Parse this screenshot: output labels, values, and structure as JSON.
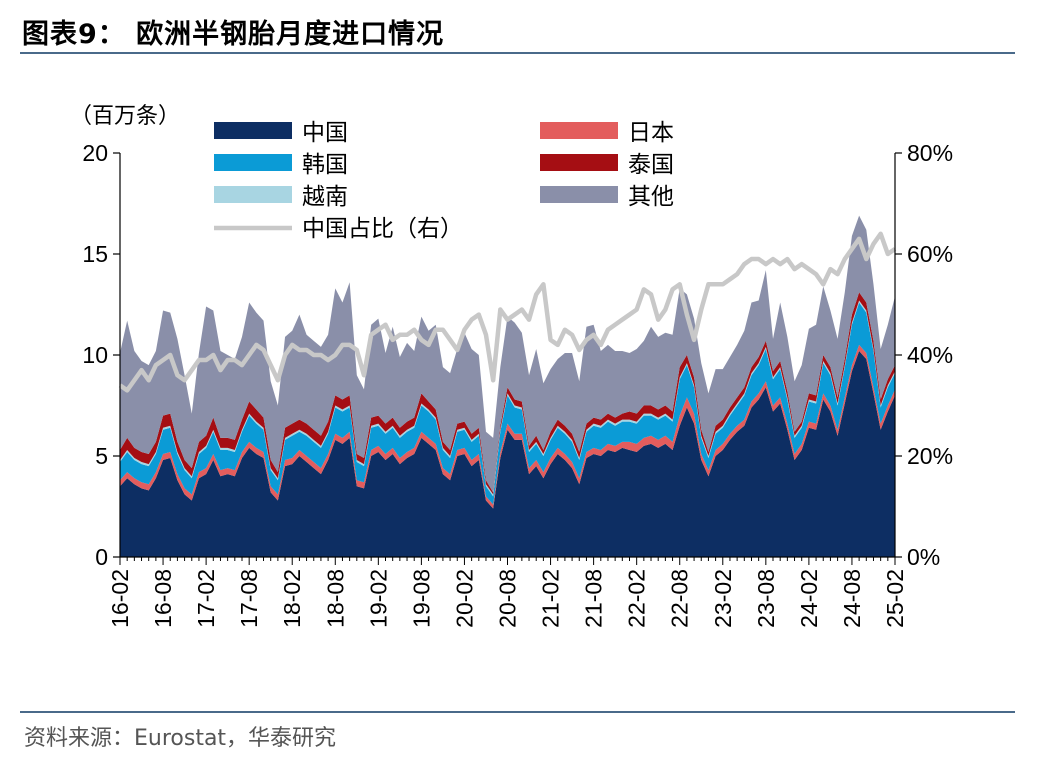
{
  "header": {
    "title": "图表9：  欧洲半钢胎月度进口情况"
  },
  "footer": {
    "source": "资料来源：Eurostat，华泰研究"
  },
  "chart_data": {
    "type": "area",
    "subtype": "stacked area with secondary line",
    "title": "图表9：  欧洲半钢胎月度进口情况",
    "ylabel_left": "（百万条）",
    "ylabel_right": "",
    "ylim_left": [
      0,
      20
    ],
    "yticks_left": [
      0,
      5,
      10,
      15,
      20
    ],
    "ylim_right": [
      0,
      80
    ],
    "yticks_right": [
      "0%",
      "20%",
      "40%",
      "60%",
      "80%"
    ],
    "xtick_labels": [
      "16-02",
      "16-08",
      "17-02",
      "17-08",
      "18-02",
      "18-08",
      "19-02",
      "19-08",
      "20-02",
      "20-08",
      "21-02",
      "21-08",
      "22-02",
      "22-08",
      "23-02",
      "23-08",
      "24-02",
      "24-08",
      "25-02"
    ],
    "legend_placement": "top, two columns",
    "x": [
      "16-02",
      "16-03",
      "16-04",
      "16-05",
      "16-06",
      "16-07",
      "16-08",
      "16-09",
      "16-10",
      "16-11",
      "16-12",
      "17-01",
      "17-02",
      "17-03",
      "17-04",
      "17-05",
      "17-06",
      "17-07",
      "17-08",
      "17-09",
      "17-10",
      "17-11",
      "17-12",
      "18-01",
      "18-02",
      "18-03",
      "18-04",
      "18-05",
      "18-06",
      "18-07",
      "18-08",
      "18-09",
      "18-10",
      "18-11",
      "18-12",
      "19-01",
      "19-02",
      "19-03",
      "19-04",
      "19-05",
      "19-06",
      "19-07",
      "19-08",
      "19-09",
      "19-10",
      "19-11",
      "19-12",
      "20-01",
      "20-02",
      "20-03",
      "20-04",
      "20-05",
      "20-06",
      "20-07",
      "20-08",
      "20-09",
      "20-10",
      "20-11",
      "20-12",
      "21-01",
      "21-02",
      "21-03",
      "21-04",
      "21-05",
      "21-06",
      "21-07",
      "21-08",
      "21-09",
      "21-10",
      "21-11",
      "21-12",
      "22-01",
      "22-02",
      "22-03",
      "22-04",
      "22-05",
      "22-06",
      "22-07",
      "22-08",
      "22-09",
      "22-10",
      "22-11",
      "22-12",
      "23-01",
      "23-02",
      "23-03",
      "23-04",
      "23-05",
      "23-06",
      "23-07",
      "23-08",
      "23-09",
      "23-10",
      "23-11",
      "23-12",
      "24-01",
      "24-02",
      "24-03",
      "24-04",
      "24-05",
      "24-06",
      "24-07",
      "24-08",
      "24-09",
      "24-10",
      "24-11",
      "24-12",
      "25-01",
      "25-02"
    ],
    "series": [
      {
        "name": "中国",
        "color": "#0d2e63",
        "axis": "left",
        "values": [
          3.5,
          3.9,
          3.6,
          3.4,
          3.3,
          3.9,
          4.8,
          4.9,
          3.8,
          3.1,
          2.8,
          3.9,
          4.1,
          4.8,
          4.0,
          4.1,
          4.0,
          4.9,
          5.4,
          5.1,
          4.9,
          3.2,
          2.8,
          4.5,
          4.6,
          5.0,
          4.7,
          4.4,
          4.1,
          4.8,
          5.8,
          5.6,
          5.9,
          3.5,
          3.4,
          5.0,
          5.2,
          4.8,
          5.1,
          4.6,
          4.9,
          5.1,
          5.9,
          5.6,
          5.3,
          4.1,
          3.8,
          5.0,
          5.1,
          4.5,
          4.8,
          2.8,
          2.4,
          4.9,
          6.3,
          5.8,
          5.8,
          4.1,
          4.5,
          3.9,
          4.6,
          5.1,
          4.8,
          4.4,
          3.6,
          4.9,
          5.1,
          5.0,
          5.3,
          5.2,
          5.4,
          5.3,
          5.2,
          5.5,
          5.6,
          5.4,
          5.6,
          5.3,
          6.5,
          7.4,
          6.6,
          4.8,
          4.0,
          5.0,
          5.3,
          5.8,
          6.2,
          6.5,
          7.4,
          7.8,
          8.4,
          7.2,
          7.6,
          6.3,
          4.8,
          5.3,
          6.4,
          6.3,
          7.8,
          7.2,
          6.0,
          7.6,
          9.2,
          10.2,
          9.8,
          8.1,
          6.3,
          7.2,
          8.0
        ]
      },
      {
        "name": "日本",
        "color": "#e35d5d",
        "axis": "left",
        "values": [
          0.3,
          0.3,
          0.3,
          0.3,
          0.3,
          0.3,
          0.3,
          0.3,
          0.3,
          0.3,
          0.3,
          0.3,
          0.3,
          0.3,
          0.3,
          0.3,
          0.3,
          0.3,
          0.3,
          0.3,
          0.3,
          0.3,
          0.3,
          0.3,
          0.3,
          0.3,
          0.3,
          0.3,
          0.3,
          0.3,
          0.3,
          0.3,
          0.3,
          0.3,
          0.3,
          0.3,
          0.3,
          0.3,
          0.3,
          0.3,
          0.3,
          0.3,
          0.3,
          0.3,
          0.3,
          0.3,
          0.3,
          0.3,
          0.3,
          0.3,
          0.3,
          0.2,
          0.2,
          0.3,
          0.3,
          0.3,
          0.3,
          0.3,
          0.3,
          0.3,
          0.3,
          0.3,
          0.3,
          0.3,
          0.3,
          0.3,
          0.3,
          0.3,
          0.3,
          0.3,
          0.3,
          0.4,
          0.4,
          0.4,
          0.4,
          0.4,
          0.4,
          0.4,
          0.5,
          0.5,
          0.5,
          0.3,
          0.3,
          0.3,
          0.3,
          0.3,
          0.3,
          0.3,
          0.3,
          0.3,
          0.3,
          0.3,
          0.3,
          0.3,
          0.3,
          0.3,
          0.3,
          0.3,
          0.3,
          0.3,
          0.3,
          0.3,
          0.3,
          0.3,
          0.3,
          0.3,
          0.3,
          0.3,
          0.3
        ]
      },
      {
        "name": "韩国",
        "color": "#0b9bd6",
        "axis": "left",
        "values": [
          0.9,
          1.0,
          0.9,
          0.9,
          0.9,
          0.9,
          1.2,
          1.2,
          1.0,
          0.9,
          0.8,
          0.9,
          1.0,
          1.1,
          1.0,
          0.9,
          0.9,
          1.0,
          1.3,
          1.2,
          1.1,
          0.8,
          0.7,
          1.0,
          1.1,
          0.9,
          1.0,
          1.0,
          1.0,
          1.0,
          1.3,
          1.3,
          1.2,
          0.9,
          0.8,
          1.1,
          1.0,
          1.0,
          1.0,
          1.0,
          1.0,
          1.0,
          1.3,
          1.3,
          1.2,
          0.9,
          0.8,
          0.9,
          0.9,
          0.9,
          0.9,
          0.5,
          0.4,
          1.0,
          1.4,
          1.3,
          1.2,
          0.8,
          0.8,
          0.8,
          0.9,
          1.0,
          1.0,
          1.0,
          0.9,
          1.0,
          1.1,
          1.1,
          1.1,
          1.0,
          1.0,
          1.0,
          1.0,
          1.1,
          1.0,
          1.0,
          1.0,
          1.0,
          1.8,
          1.6,
          1.3,
          0.8,
          0.6,
          0.8,
          0.8,
          0.9,
          1.0,
          1.2,
          1.3,
          1.4,
          1.6,
          1.3,
          1.4,
          1.2,
          0.8,
          0.8,
          1.0,
          1.0,
          1.5,
          1.5,
          1.2,
          1.5,
          2.0,
          2.1,
          2.0,
          1.8,
          0.8,
          0.9,
          0.8
        ]
      },
      {
        "name": "越南",
        "color": "#a8d5e2",
        "axis": "left",
        "values": [
          0.1,
          0.1,
          0.1,
          0.1,
          0.1,
          0.1,
          0.1,
          0.1,
          0.1,
          0.1,
          0.1,
          0.1,
          0.1,
          0.1,
          0.1,
          0.1,
          0.1,
          0.1,
          0.1,
          0.1,
          0.1,
          0.1,
          0.1,
          0.1,
          0.1,
          0.1,
          0.1,
          0.1,
          0.1,
          0.1,
          0.1,
          0.1,
          0.1,
          0.1,
          0.1,
          0.1,
          0.1,
          0.1,
          0.1,
          0.1,
          0.1,
          0.1,
          0.1,
          0.1,
          0.1,
          0.1,
          0.1,
          0.1,
          0.1,
          0.1,
          0.1,
          0.1,
          0.1,
          0.1,
          0.1,
          0.1,
          0.1,
          0.1,
          0.1,
          0.1,
          0.1,
          0.1,
          0.1,
          0.1,
          0.1,
          0.1,
          0.1,
          0.1,
          0.1,
          0.1,
          0.1,
          0.1,
          0.1,
          0.1,
          0.1,
          0.1,
          0.1,
          0.1,
          0.1,
          0.1,
          0.1,
          0.1,
          0.1,
          0.1,
          0.1,
          0.1,
          0.1,
          0.1,
          0.1,
          0.1,
          0.1,
          0.1,
          0.1,
          0.1,
          0.1,
          0.1,
          0.1,
          0.1,
          0.1,
          0.1,
          0.1,
          0.1,
          0.1,
          0.1,
          0.1,
          0.1,
          0.1,
          0.1,
          0.1
        ]
      },
      {
        "name": "泰国",
        "color": "#a50e13",
        "axis": "left",
        "values": [
          0.5,
          0.6,
          0.5,
          0.5,
          0.5,
          0.5,
          0.6,
          0.6,
          0.5,
          0.4,
          0.4,
          0.5,
          0.5,
          0.6,
          0.5,
          0.5,
          0.5,
          0.5,
          0.6,
          0.6,
          0.5,
          0.4,
          0.3,
          0.5,
          0.5,
          0.5,
          0.5,
          0.5,
          0.5,
          0.5,
          0.5,
          0.5,
          0.5,
          0.3,
          0.3,
          0.4,
          0.4,
          0.4,
          0.4,
          0.4,
          0.4,
          0.4,
          0.5,
          0.4,
          0.4,
          0.3,
          0.3,
          0.3,
          0.3,
          0.3,
          0.3,
          0.2,
          0.1,
          0.2,
          0.3,
          0.3,
          0.3,
          0.2,
          0.3,
          0.2,
          0.3,
          0.3,
          0.3,
          0.3,
          0.3,
          0.3,
          0.3,
          0.3,
          0.3,
          0.3,
          0.3,
          0.4,
          0.4,
          0.4,
          0.4,
          0.4,
          0.4,
          0.4,
          0.5,
          0.4,
          0.4,
          0.3,
          0.2,
          0.3,
          0.3,
          0.3,
          0.3,
          0.3,
          0.3,
          0.3,
          0.3,
          0.3,
          0.3,
          0.3,
          0.2,
          0.2,
          0.3,
          0.3,
          0.3,
          0.3,
          0.3,
          0.3,
          0.4,
          0.4,
          0.4,
          0.4,
          0.3,
          0.3,
          0.3
        ]
      },
      {
        "name": "其他",
        "color": "#8a8fa9",
        "axis": "left",
        "values": [
          4.8,
          5.8,
          4.8,
          4.5,
          4.4,
          4.5,
          5.2,
          5.0,
          5.1,
          4.2,
          2.7,
          4.4,
          6.4,
          5.3,
          4.3,
          4.1,
          4.0,
          4.1,
          4.9,
          4.8,
          4.8,
          3.9,
          3.3,
          4.5,
          4.6,
          5.2,
          4.4,
          4.4,
          4.4,
          4.3,
          5.3,
          4.8,
          5.6,
          3.9,
          3.4,
          4.6,
          4.8,
          3.5,
          4.5,
          3.5,
          3.9,
          3.3,
          3.8,
          3.5,
          4.2,
          3.7,
          3.8,
          3.7,
          4.4,
          4.2,
          3.6,
          2.4,
          2.7,
          2.9,
          3.5,
          3.8,
          3.4,
          3.5,
          4.3,
          3.3,
          3.1,
          3.0,
          3.6,
          4.0,
          3.5,
          4.8,
          4.6,
          3.4,
          3.4,
          3.3,
          3.1,
          2.9,
          3.2,
          3.2,
          3.9,
          3.6,
          3.6,
          3.8,
          3.9,
          3.0,
          2.9,
          3.3,
          2.9,
          2.8,
          2.5,
          2.5,
          2.6,
          2.8,
          3.2,
          2.8,
          3.5,
          1.6,
          2.9,
          2.7,
          2.5,
          2.8,
          3.2,
          3.5,
          3.4,
          2.8,
          2.9,
          3.3,
          3.9,
          3.8,
          3.6,
          2.8,
          2.5,
          2.7,
          3.4
        ]
      },
      {
        "name": "中国占比（右）",
        "color": "#c8c8c8",
        "axis": "right",
        "type": "line",
        "values": [
          34,
          33,
          35,
          37,
          35,
          38,
          39,
          40,
          36,
          35,
          37,
          39,
          39,
          40,
          37,
          39,
          39,
          38,
          40,
          42,
          41,
          38,
          35,
          40,
          42,
          41,
          41,
          40,
          40,
          39,
          40,
          42,
          42,
          41,
          36,
          44,
          45,
          46,
          43,
          44,
          44,
          45,
          43,
          42,
          45,
          45,
          43,
          41,
          45,
          47,
          48,
          44,
          35,
          49,
          47,
          48,
          49,
          47,
          52,
          54,
          43,
          42,
          45,
          44,
          41,
          43,
          44,
          42,
          45,
          46,
          47,
          48,
          49,
          53,
          52,
          47,
          49,
          53,
          54,
          48,
          43,
          49,
          54,
          54,
          54,
          55,
          56,
          58,
          59,
          59,
          58,
          59,
          58,
          59,
          57,
          58,
          57,
          56,
          54,
          57,
          56,
          59,
          61,
          63,
          59,
          62,
          64,
          60,
          61
        ]
      }
    ]
  }
}
